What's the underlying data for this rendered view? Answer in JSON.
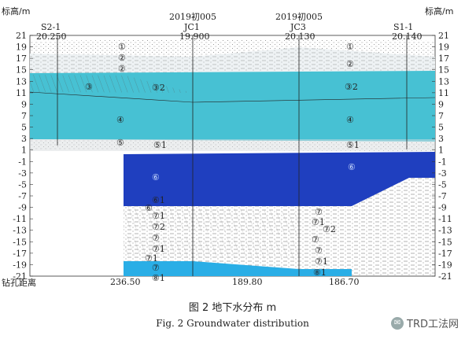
{
  "axis": {
    "left_title": "标高/m",
    "right_title": "标高/m",
    "ticks": [
      "21",
      "19",
      "17",
      "15",
      "13",
      "11",
      "9",
      "7",
      "5",
      "3",
      "1",
      "-1",
      "-3",
      "-5",
      "-7",
      "-9",
      "-11",
      "-13",
      "-15",
      "-17",
      "-19",
      "-21"
    ],
    "bottom_label": "钻孔距离"
  },
  "boreholes": [
    {
      "id": "S2-1",
      "project": "",
      "elevation": "20.250"
    },
    {
      "id": "JC1",
      "project": "2019初005",
      "elevation": "19.900"
    },
    {
      "id": "JC3",
      "project": "2019初005",
      "elevation": "20.130"
    },
    {
      "id": "S1-1",
      "project": "",
      "elevation": "20.140"
    }
  ],
  "distances": [
    "236.50",
    "189.80",
    "186.70"
  ],
  "layers": {
    "l1": "①",
    "l2": "②",
    "l3": "③",
    "l32": "③2",
    "l4": "④",
    "l5": "⑤",
    "l51": "⑤1",
    "l6": "⑥",
    "l61": "⑥1",
    "l71": "⑦1",
    "l72": "⑦2",
    "l7": "⑦",
    "l81": "⑧1"
  },
  "colors": {
    "aquifer_light": "#47c1d3",
    "aquifer_dark": "#1f3fbf",
    "aquifer_bottom": "#2aaee6",
    "fill_light": "#e8eef2"
  },
  "caption": {
    "zh": "图 2   地下水分布   m",
    "en": "Fig. 2   Groundwater distribution"
  },
  "watermark": "TRD工法网"
}
